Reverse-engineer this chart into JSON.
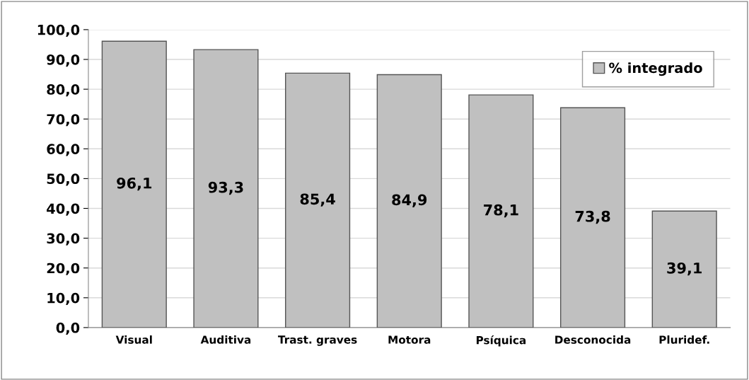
{
  "chart_data": {
    "type": "bar",
    "categories": [
      "Visual",
      "Auditiva",
      "Trast. graves",
      "Motora",
      "Psíquica",
      "Desconocida",
      "Pluridef."
    ],
    "series": [
      {
        "name": "% integrado",
        "color": "#c0c0c0",
        "values": [
          96.1,
          93.3,
          85.4,
          84.9,
          78.1,
          73.8,
          39.1
        ]
      }
    ],
    "value_labels": [
      "96,1",
      "93,3",
      "85,4",
      "84,9",
      "78,1",
      "73,8",
      "39,1"
    ],
    "ylim": [
      0,
      100
    ],
    "yticks": [
      {
        "value": 0,
        "label": "0,0"
      },
      {
        "value": 10,
        "label": "10,0"
      },
      {
        "value": 20,
        "label": "20,0"
      },
      {
        "value": 30,
        "label": "30,0"
      },
      {
        "value": 40,
        "label": "40,0"
      },
      {
        "value": 50,
        "label": "50,0"
      },
      {
        "value": 60,
        "label": "60,0"
      },
      {
        "value": 70,
        "label": "70,0"
      },
      {
        "value": 80,
        "label": "80,0"
      },
      {
        "value": 90,
        "label": "90,0"
      },
      {
        "value": 100,
        "label": "100,0"
      }
    ],
    "grid": "y",
    "legend": "top right"
  }
}
